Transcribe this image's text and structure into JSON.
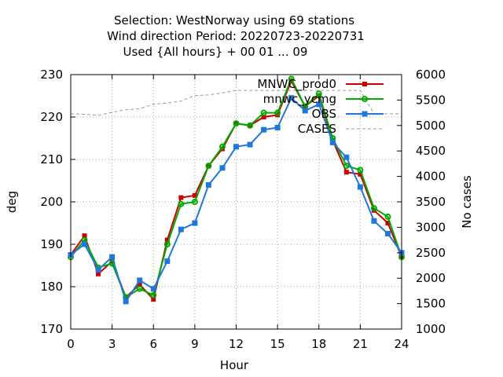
{
  "chart_data": {
    "type": "line",
    "title_lines": [
      "Selection: WestNorway using    69 stations",
      "Wind direction   Period: 20220723-20220731",
      "Used {All hours} + 00 01 ... 09"
    ],
    "xlabel": "Hour",
    "ylabel": "deg",
    "y2label": "No cases",
    "xlim": [
      0,
      24
    ],
    "ylim": [
      170,
      230
    ],
    "y2lim": [
      1000,
      6000
    ],
    "xticks": [
      "0",
      "3",
      "6",
      "9",
      "12",
      "15",
      "18",
      "21",
      "24"
    ],
    "yticks": [
      "170",
      "180",
      "190",
      "200",
      "210",
      "220",
      "230"
    ],
    "y2ticks": [
      "1000",
      "1500",
      "2000",
      "2500",
      "3000",
      "3500",
      "4000",
      "4500",
      "5000",
      "5500",
      "6000"
    ],
    "grid": true,
    "legend_position": "top-right",
    "x": [
      0,
      1,
      2,
      3,
      4,
      5,
      6,
      7,
      8,
      9,
      10,
      11,
      12,
      13,
      14,
      15,
      16,
      17,
      18,
      19,
      20,
      21,
      22,
      23,
      24
    ],
    "series": [
      {
        "name": "MNWC_prod0",
        "color": "#cc0000",
        "axis": "y",
        "values": [
          187.5,
          192.0,
          183.0,
          186.0,
          177.5,
          180.5,
          177.0,
          191.0,
          201.0,
          201.5,
          208.5,
          212.5,
          218.5,
          218.0,
          220.0,
          220.5,
          228.5,
          222.5,
          225.0,
          214.5,
          207.0,
          206.5,
          198.0,
          195.0,
          187.0
        ]
      },
      {
        "name": "mnwc_ycmg",
        "color": "#00aa00",
        "axis": "y",
        "values": [
          187.0,
          191.0,
          184.5,
          185.5,
          177.5,
          179.5,
          178.0,
          190.0,
          199.5,
          200.0,
          208.5,
          213.0,
          218.5,
          218.0,
          221.0,
          221.0,
          229.0,
          222.5,
          225.5,
          215.0,
          208.5,
          207.5,
          198.5,
          196.5,
          187.0
        ]
      },
      {
        "name": "OBS",
        "color": "#1e78dc",
        "axis": "y",
        "values": [
          187.5,
          190.0,
          184.0,
          187.0,
          176.5,
          181.5,
          179.5,
          186.0,
          193.5,
          195.0,
          204.0,
          208.0,
          213.0,
          213.5,
          217.0,
          217.5,
          224.5,
          221.5,
          223.0,
          214.0,
          210.5,
          203.5,
          195.5,
          192.5,
          188.0
        ]
      },
      {
        "name": "CASES",
        "color": "#999999",
        "axis": "y2",
        "values": [
          5230,
          5220,
          5200,
          5260,
          5310,
          5330,
          5420,
          5440,
          5480,
          5590,
          5600,
          5640,
          5690,
          5690,
          5690,
          5690,
          5690,
          5690,
          5690,
          5690,
          5690,
          5690,
          5230,
          5230,
          5230
        ]
      }
    ]
  }
}
